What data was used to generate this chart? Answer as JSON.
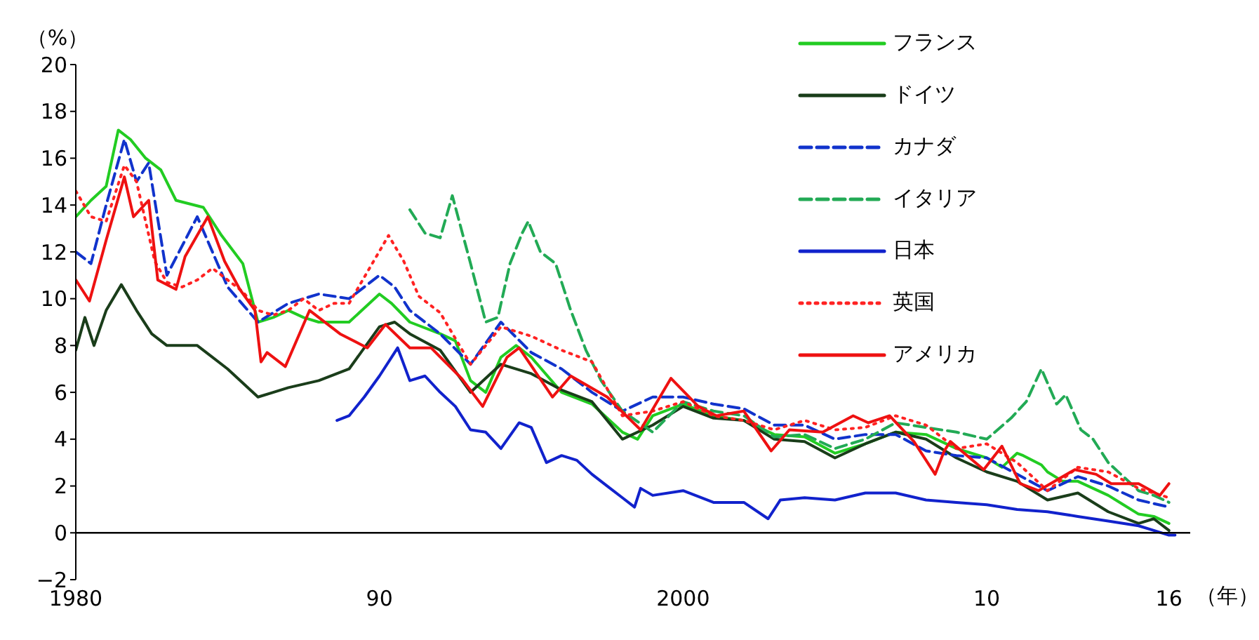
{
  "chart_data": {
    "type": "line",
    "ylabel": "（%）",
    "xlabel": "（年）",
    "xlim": [
      1980,
      2016.7
    ],
    "xticks": [
      1980,
      {
        "value": 1990,
        "label": "90"
      },
      2000,
      {
        "value": 2010,
        "label": "10"
      },
      {
        "value": 2016,
        "label": "16"
      }
    ],
    "ylim": [
      -2,
      20
    ],
    "yticks": [
      {
        "value": -2,
        "label": "−2"
      },
      0,
      2,
      4,
      6,
      8,
      10,
      12,
      14,
      16,
      18,
      20
    ],
    "grid": false,
    "legend": "top right",
    "marker": "none",
    "series": [
      {
        "name": "フランス",
        "color": "#22cc22",
        "line_style": "solid",
        "x": [
          1980,
          1980.5,
          1981,
          1981.4,
          1981.8,
          1982.3,
          1982.8,
          1983.3,
          1984.2,
          1984.8,
          1985.5,
          1986,
          1986.5,
          1987,
          1987.5,
          1988,
          1989,
          1990,
          1990.4,
          1991,
          1992,
          1992.5,
          1993,
          1993.5,
          1994,
          1994.5,
          1995,
          1996,
          1997,
          1998,
          1998.5,
          1999,
          2000,
          2001,
          2002,
          2003,
          2004,
          2005,
          2006,
          2007,
          2008,
          2009,
          2010,
          2010.5,
          2011,
          2011.2,
          2011.8,
          2012,
          2012.5,
          2013,
          2014,
          2014.5,
          2015,
          2015.5,
          2016
        ],
        "values": [
          13.5,
          14.2,
          14.8,
          17.2,
          16.8,
          16.0,
          15.5,
          14.2,
          13.9,
          12.7,
          11.5,
          9.0,
          9.2,
          9.5,
          9.2,
          9.0,
          9.0,
          10.2,
          9.8,
          9.0,
          8.5,
          8.2,
          6.5,
          6.0,
          7.5,
          8.0,
          7.5,
          6.0,
          5.5,
          4.3,
          4.0,
          5.0,
          5.5,
          5.0,
          4.8,
          4.2,
          4.1,
          3.4,
          3.8,
          4.3,
          4.2,
          3.6,
          3.2,
          2.8,
          3.4,
          3.3,
          2.9,
          2.6,
          2.2,
          2.2,
          1.6,
          1.2,
          0.8,
          0.7,
          0.4
        ]
      },
      {
        "name": "ドイツ",
        "color": "#1a3d1a",
        "line_style": "solid",
        "x": [
          1980,
          1980.3,
          1980.6,
          1981,
          1981.5,
          1982,
          1982.5,
          1983,
          1984,
          1985,
          1986,
          1986.5,
          1987,
          1988,
          1989,
          1990,
          1990.5,
          1991,
          1992,
          1993,
          1994,
          1995,
          1996,
          1997,
          1998,
          1999,
          2000,
          2001,
          2002,
          2003,
          2004,
          2005,
          2006,
          2007,
          2008,
          2009,
          2010,
          2011,
          2012,
          2013,
          2014,
          2015,
          2015.5,
          2016
        ],
        "values": [
          7.8,
          9.2,
          8.0,
          9.5,
          10.6,
          9.5,
          8.5,
          8.0,
          8.0,
          7.0,
          5.8,
          6.0,
          6.2,
          6.5,
          7.0,
          8.8,
          9.0,
          8.5,
          7.8,
          6.0,
          7.2,
          6.8,
          6.1,
          5.6,
          4.0,
          4.6,
          5.4,
          4.9,
          4.8,
          4.0,
          3.9,
          3.2,
          3.8,
          4.3,
          4.0,
          3.2,
          2.6,
          2.2,
          1.4,
          1.7,
          0.9,
          0.4,
          0.6,
          0.1
        ]
      },
      {
        "name": "カナダ",
        "color": "#1133cc",
        "line_style": "dashed",
        "x": [
          1980,
          1980.5,
          1981,
          1981.6,
          1982,
          1982.4,
          1983,
          1984,
          1985,
          1986,
          1987,
          1988,
          1989,
          1990,
          1990.5,
          1991,
          1992,
          1993,
          1994,
          1995,
          1996,
          1997,
          1998,
          1999,
          2000,
          2001,
          2002,
          2003,
          2004,
          2005,
          2006,
          2007,
          2008,
          2009,
          2010,
          2011,
          2012,
          2013,
          2014,
          2015,
          2016
        ],
        "values": [
          12.0,
          11.5,
          14.0,
          16.8,
          15.0,
          15.8,
          11.0,
          13.5,
          10.5,
          9.0,
          9.8,
          10.2,
          10.0,
          11.0,
          10.5,
          9.5,
          8.5,
          7.2,
          9.0,
          7.7,
          7.0,
          6.0,
          5.2,
          5.8,
          5.8,
          5.5,
          5.3,
          4.6,
          4.6,
          4.0,
          4.2,
          4.2,
          3.5,
          3.3,
          3.2,
          2.5,
          1.8,
          2.4,
          2.0,
          1.4,
          1.1
        ]
      },
      {
        "name": "イタリア",
        "color": "#22aa55",
        "line_style": "dashed",
        "x": [
          1991,
          1991.5,
          1992,
          1992.4,
          1993,
          1993.5,
          1993.9,
          1994.3,
          1994.7,
          1994.9,
          1995.3,
          1995.8,
          1996.3,
          1996.8,
          1997.3,
          1998,
          1999,
          2000,
          2001,
          2002,
          2003,
          2004,
          2005,
          2006,
          2007,
          2008,
          2009,
          2010,
          2010.8,
          2011.3,
          2011.8,
          2012.3,
          2012.6,
          2013.1,
          2013.5,
          2014,
          2014.5,
          2015,
          2015.5,
          2016
        ],
        "values": [
          13.8,
          12.8,
          12.6,
          14.4,
          11.5,
          9.0,
          9.2,
          11.5,
          12.8,
          13.3,
          12.0,
          11.5,
          9.5,
          7.8,
          6.5,
          5.2,
          4.3,
          5.6,
          5.2,
          5.0,
          4.1,
          4.2,
          3.6,
          4.0,
          4.7,
          4.5,
          4.3,
          4.0,
          4.9,
          5.6,
          7.0,
          5.5,
          5.9,
          4.4,
          4.0,
          3.0,
          2.4,
          1.8,
          1.6,
          1.3
        ]
      },
      {
        "name": "日本",
        "color": "#1122cc",
        "line_style": "solid",
        "x": [
          1988.6,
          1989,
          1989.5,
          1990,
          1990.6,
          1991,
          1991.5,
          1992,
          1992.5,
          1993,
          1993.5,
          1994,
          1994.6,
          1995,
          1995.5,
          1996,
          1996.5,
          1997,
          1997.5,
          1998,
          1998.4,
          1998.6,
          1999,
          2000,
          2001,
          2002,
          2002.8,
          2003.2,
          2004,
          2005,
          2006,
          2007,
          2008,
          2009,
          2010,
          2011,
          2012,
          2013,
          2014,
          2015,
          2015.5,
          2016,
          2016.2
        ],
        "values": [
          4.8,
          5.0,
          5.8,
          6.7,
          7.9,
          6.5,
          6.7,
          6.0,
          5.4,
          4.4,
          4.3,
          3.6,
          4.7,
          4.5,
          3.0,
          3.3,
          3.1,
          2.5,
          2.0,
          1.5,
          1.1,
          1.9,
          1.6,
          1.8,
          1.3,
          1.3,
          0.6,
          1.4,
          1.5,
          1.4,
          1.7,
          1.7,
          1.4,
          1.3,
          1.2,
          1.0,
          0.9,
          0.7,
          0.5,
          0.3,
          0.1,
          -0.1,
          -0.1
        ]
      },
      {
        "name": "英国",
        "color": "#ff2222",
        "line_style": "dotted",
        "x": [
          1980,
          1980.5,
          1981,
          1981.6,
          1982,
          1982.6,
          1983,
          1983.5,
          1984,
          1984.5,
          1985,
          1985.5,
          1986,
          1986.5,
          1987,
          1987.5,
          1988,
          1988.5,
          1989,
          1990.3,
          1990.8,
          1991.3,
          1992,
          1993,
          1994,
          1995,
          1996,
          1997,
          1998,
          1999,
          2000,
          2001,
          2002,
          2003,
          2004,
          2005,
          2006,
          2007,
          2008,
          2009,
          2010,
          2011,
          2012,
          2013,
          2014,
          2015,
          2016
        ],
        "values": [
          14.6,
          13.5,
          13.3,
          15.7,
          15.0,
          11.6,
          10.7,
          10.5,
          10.8,
          11.3,
          10.8,
          10.3,
          9.5,
          9.3,
          9.5,
          10.0,
          9.5,
          9.8,
          9.8,
          12.7,
          11.6,
          10.1,
          9.4,
          7.2,
          8.8,
          8.4,
          7.8,
          7.3,
          5.0,
          5.2,
          5.6,
          5.0,
          4.8,
          4.4,
          4.8,
          4.4,
          4.5,
          5.0,
          4.6,
          3.6,
          3.8,
          3.0,
          1.8,
          2.8,
          2.6,
          1.9,
          1.5
        ]
      },
      {
        "name": "アメリカ",
        "color": "#ee1111",
        "line_style": "solid",
        "x": [
          1980,
          1980.45,
          1981,
          1981.6,
          1981.9,
          1982.4,
          1982.7,
          1983.3,
          1983.6,
          1984.35,
          1984.9,
          1985.4,
          1985.9,
          1986.1,
          1986.3,
          1986.9,
          1987.7,
          1988.7,
          1989.6,
          1990.2,
          1991,
          1991.7,
          1992.7,
          1993.4,
          1994.2,
          1994.6,
          1995.7,
          1996.3,
          1997.5,
          1998.6,
          1999.6,
          2000.5,
          2001.1,
          2002,
          2002.9,
          2003.5,
          2004.6,
          2005.6,
          2006.1,
          2006.8,
          2007.6,
          2008.3,
          2008.6,
          2008.8,
          2009.9,
          2010.5,
          2011.1,
          2011.7,
          2012.9,
          2013.6,
          2014.1,
          2015,
          2015.7,
          2016
        ],
        "values": [
          10.8,
          9.9,
          12.5,
          15.2,
          13.5,
          14.2,
          10.8,
          10.4,
          11.8,
          13.5,
          11.6,
          10.4,
          9.5,
          7.3,
          7.7,
          7.1,
          9.5,
          8.5,
          7.9,
          8.9,
          7.9,
          7.9,
          6.6,
          5.4,
          7.5,
          7.9,
          5.8,
          6.7,
          5.8,
          4.4,
          6.6,
          5.4,
          5.0,
          5.2,
          3.5,
          4.4,
          4.3,
          5.0,
          4.7,
          5.0,
          3.9,
          2.5,
          3.5,
          3.9,
          2.7,
          3.7,
          2.1,
          1.8,
          2.7,
          2.5,
          2.1,
          2.1,
          1.6,
          2.1
        ]
      }
    ]
  }
}
